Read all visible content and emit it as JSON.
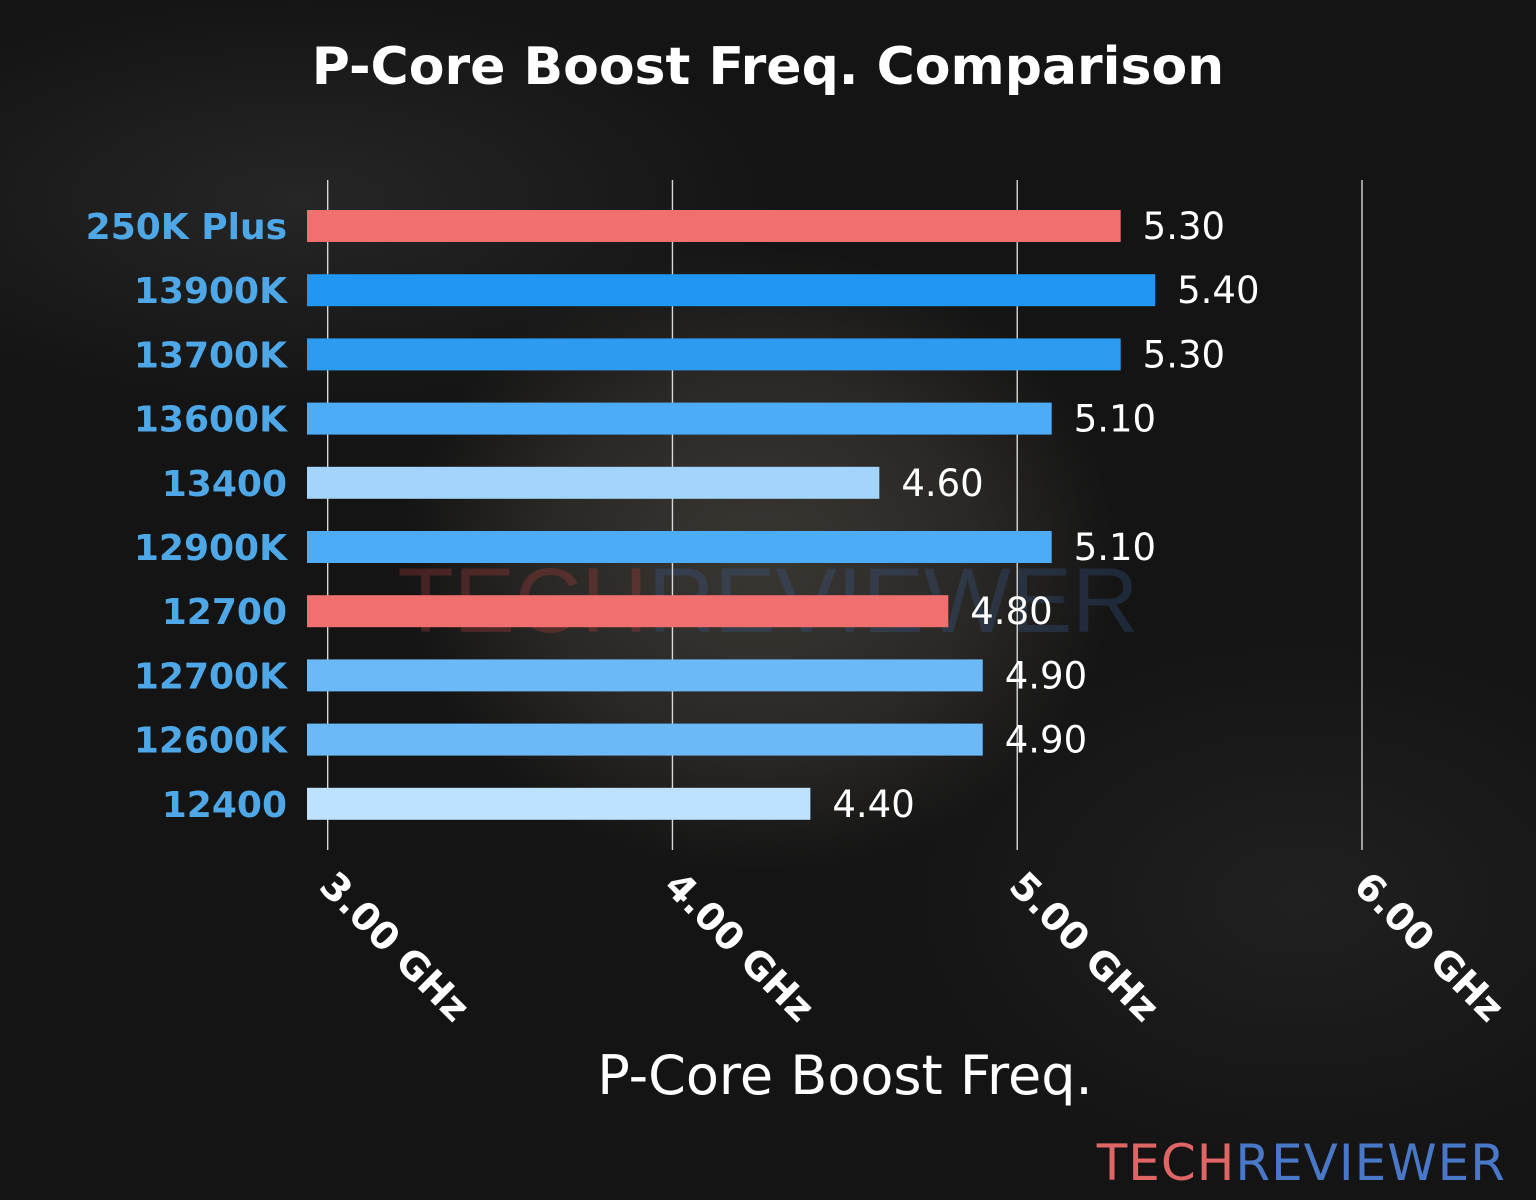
{
  "chart_data": {
    "type": "bar",
    "orientation": "horizontal",
    "title": "P-Core Boost Freq. Comparison",
    "xlabel": "P-Core Boost Freq.",
    "ylabel": "",
    "xlim": [
      2.94,
      6.0
    ],
    "x_ticks": [
      {
        "value": 3.0,
        "label": "3.00 GHz"
      },
      {
        "value": 4.0,
        "label": "4.00 GHz"
      },
      {
        "value": 5.0,
        "label": "5.00 GHz"
      },
      {
        "value": 6.0,
        "label": "6.00 GHz"
      }
    ],
    "grid": "vertical",
    "categories": [
      "250K Plus",
      "13900K",
      "13700K",
      "13600K",
      "13400",
      "12900K",
      "12700",
      "12700K",
      "12600K",
      "12400"
    ],
    "values": [
      5.3,
      5.4,
      5.3,
      5.1,
      4.6,
      5.1,
      4.8,
      4.9,
      4.9,
      4.4
    ],
    "value_labels": [
      "5.30",
      "5.40",
      "5.30",
      "5.10",
      "4.60",
      "5.10",
      "4.80",
      "4.90",
      "4.90",
      "4.40"
    ],
    "bar_colors": [
      "#f07070",
      "#2196f3",
      "#2d9cf0",
      "#4eabf5",
      "#a3d4fb",
      "#4eabf5",
      "#f07070",
      "#6cb9f7",
      "#6cb9f7",
      "#bee2fd"
    ],
    "category_label_color": "#4ea8e8"
  },
  "watermark": {
    "part1": "TECH",
    "part2": "REVIEWER",
    "part1_color": "#e06666",
    "part2_color": "#4a78c8"
  }
}
